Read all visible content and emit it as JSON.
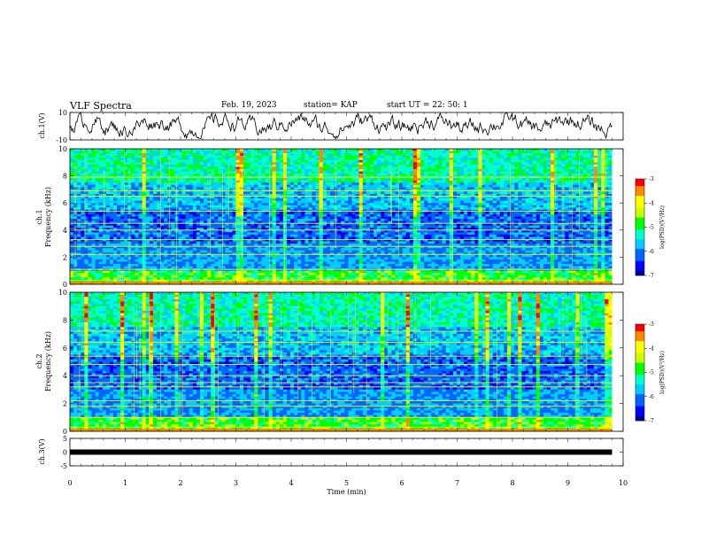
{
  "header": {
    "title": "VLF Spectra",
    "date": "Feb. 19, 2023",
    "station": "station= KAP",
    "start": "start  UT  =   22: 50: 1"
  },
  "chart_data": [
    {
      "type": "line",
      "panel": "ch1-waveform",
      "ylabel": "ch.1(V)",
      "ylim": [
        -10,
        10
      ],
      "ytick_labels": [
        "10",
        "-10"
      ],
      "note_values": "noisy waveform oscillating roughly between -5 and 7 V across 0–9.8 min"
    },
    {
      "type": "heatmap",
      "panel": "ch1-spectrogram",
      "ylabel": "ch.1\nFrequency (kHz)",
      "ylim": [
        0,
        10
      ],
      "ytick_labels": [
        "0",
        "2",
        "4",
        "6",
        "8",
        "10"
      ],
      "xlim": [
        0,
        9.8
      ],
      "bands_khz": [
        0.3,
        1.1,
        2.2,
        2.8,
        3.3,
        4.0,
        4.5,
        5.4,
        6.5,
        6.9,
        7.9
      ],
      "colorbar": {
        "label": "log(PSD)(V²/Hz)",
        "range": [
          -7,
          -3
        ],
        "tick_labels": [
          "-3",
          "-4",
          "-5",
          "-6",
          "-7"
        ]
      }
    },
    {
      "type": "heatmap",
      "panel": "ch2-spectrogram",
      "ylabel": "ch.2\nFrequency (kHz)",
      "ylim": [
        0,
        10
      ],
      "ytick_labels": [
        "0",
        "2",
        "4",
        "6",
        "8",
        "10"
      ],
      "xlim": [
        0,
        9.8
      ],
      "bands_khz": [
        0.3,
        1.0,
        1.8,
        2.2,
        3.2,
        3.5,
        4.0,
        4.8,
        5.4,
        6.4,
        7.2
      ],
      "colorbar": {
        "label": "log(PSD)(V²/Hz)",
        "range": [
          -7,
          -3
        ],
        "tick_labels": [
          "-3",
          "-4",
          "-5",
          "-6",
          "-7"
        ]
      }
    },
    {
      "type": "line",
      "panel": "ch3-waveform",
      "ylabel": "ch.3(V)",
      "ylim": [
        -5,
        5
      ],
      "ytick_labels": [
        "5",
        "0",
        "-5"
      ],
      "x": [
        0,
        9.8
      ],
      "y": [
        0,
        0
      ]
    }
  ],
  "xaxis": {
    "label": "Time  (min)",
    "xlim": [
      0,
      10
    ],
    "tick_labels": [
      "0",
      "1",
      "2",
      "3",
      "4",
      "5",
      "6",
      "7",
      "8",
      "9",
      "10"
    ]
  },
  "colors": {
    "line": "#000000",
    "colormap": [
      "#000099",
      "#0000ff",
      "#0066ff",
      "#00ccff",
      "#00ffcc",
      "#00ff00",
      "#ccff00",
      "#ffff00",
      "#ff8800",
      "#ff0000"
    ]
  }
}
